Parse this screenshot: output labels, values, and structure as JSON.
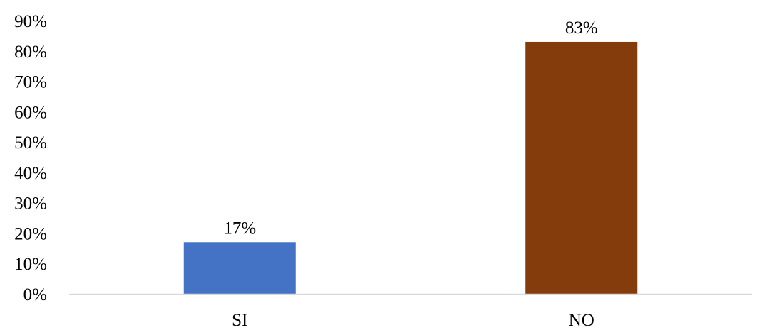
{
  "chart_data": {
    "type": "bar",
    "categories": [
      "SI",
      "NO"
    ],
    "values": [
      17,
      83
    ],
    "value_labels": [
      "17%",
      "83%"
    ],
    "bar_colors": [
      "#4472C4",
      "#843C0C"
    ],
    "ylim": [
      0,
      90
    ],
    "y_ticks": [
      0,
      10,
      20,
      30,
      40,
      50,
      60,
      70,
      80,
      90
    ],
    "y_tick_labels": [
      "0%",
      "10%",
      "20%",
      "30%",
      "40%",
      "50%",
      "60%",
      "70%",
      "80%",
      "90%"
    ],
    "grid": false,
    "axis_color": "#D9D9D9"
  }
}
